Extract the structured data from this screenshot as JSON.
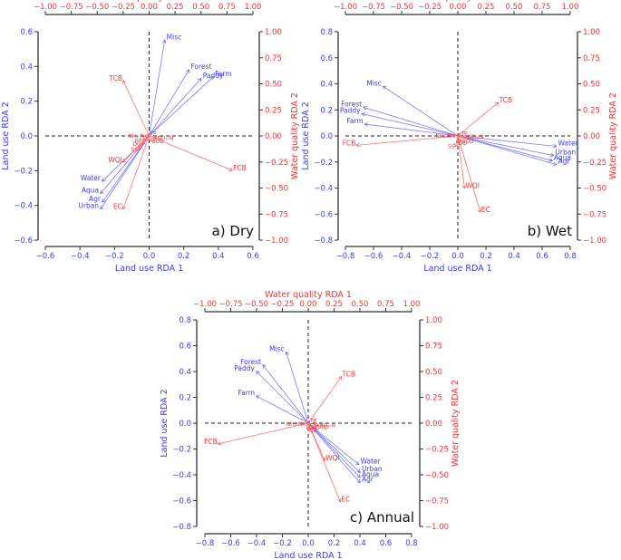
{
  "colors": {
    "land_use": "#3a3aff",
    "water_quality": "#ff3030",
    "axis": "#333333"
  },
  "chart_data": [
    {
      "type": "scatter",
      "panel_label": "a) Dry",
      "xlabel": "Land use RDA 1",
      "ylabel": "Land use RDA 2",
      "top_xlabel": "Water quality RDA 1",
      "right_ylabel": "Water quality RDA 2",
      "xlim": [
        -0.6,
        0.6
      ],
      "ylim": [
        -0.6,
        0.6
      ],
      "xticks": [
        "−0.6",
        "−0.4",
        "−0.2",
        "0.0",
        "0.2",
        "0.4",
        "0.6"
      ],
      "yticks": [
        "0.6",
        "0.4",
        "0.2",
        "0.0",
        "−0.2",
        "−0.4",
        "−0.6"
      ],
      "top_ticks": [
        "−1.00",
        "−0.75",
        "−0.50",
        "−0.25",
        "0.00",
        "0.25",
        "0.50",
        "0.75",
        "1.00"
      ],
      "right_ticks": [
        "1.00",
        "0.75",
        "0.50",
        "0.25",
        "0.00",
        "−0.25",
        "−0.50",
        "−0.75",
        "−1.00"
      ],
      "land_use_vectors": [
        {
          "label": "Misc",
          "x": 0.09,
          "y": 0.55
        },
        {
          "label": "Forest",
          "x": 0.23,
          "y": 0.38
        },
        {
          "label": "Paddy",
          "x": 0.3,
          "y": 0.33
        },
        {
          "label": "Farm",
          "x": 0.37,
          "y": 0.34
        },
        {
          "label": "Water",
          "x": -0.27,
          "y": -0.26
        },
        {
          "label": "Aqua",
          "x": -0.28,
          "y": -0.33
        },
        {
          "label": "Agr",
          "x": -0.27,
          "y": -0.38
        },
        {
          "label": "Urban",
          "x": -0.28,
          "y": -0.42
        }
      ],
      "water_quality_vectors": [
        {
          "label": "TCB",
          "x": -0.25,
          "y": 0.53
        },
        {
          "label": "FCB",
          "x": 0.8,
          "y": -0.33
        },
        {
          "label": "EC",
          "x": -0.25,
          "y": -0.7
        },
        {
          "label": "WQI",
          "x": -0.25,
          "y": -0.25
        },
        {
          "label": "SS",
          "x": -0.1,
          "y": -0.13
        },
        {
          "label": "DO",
          "x": -0.07,
          "y": -0.08
        },
        {
          "label": "pH",
          "x": -0.06,
          "y": -0.04
        },
        {
          "label": "NH₃-N",
          "x": -0.04,
          "y": 0.0
        },
        {
          "label": "TP",
          "x": 0.0,
          "y": 0.02
        },
        {
          "label": "NO₃-N",
          "x": 0.07,
          "y": -0.02
        },
        {
          "label": "BOD",
          "x": 0.02,
          "y": -0.05
        }
      ]
    },
    {
      "type": "scatter",
      "panel_label": "b) Wet",
      "xlabel": "Land use RDA 1",
      "ylabel": "Land use RDA 2",
      "top_xlabel": "Water quality RDA 1",
      "right_ylabel": "Water quality RDA 2",
      "xlim": [
        -0.8,
        0.8
      ],
      "ylim": [
        -0.8,
        0.8
      ],
      "xticks": [
        "−0.8",
        "−0.6",
        "−0.4",
        "−0.2",
        "0.0",
        "0.2",
        "0.4",
        "0.6",
        "0.8"
      ],
      "yticks": [
        "0.8",
        "0.6",
        "0.4",
        "0.2",
        "0.0",
        "−0.2",
        "−0.4",
        "−0.6",
        "−0.8"
      ],
      "top_ticks": [
        "−1.00",
        "−0.75",
        "−0.50",
        "−0.25",
        "0.00",
        "0.25",
        "0.50",
        "0.75",
        "1.00"
      ],
      "right_ticks": [
        "1.00",
        "0.75",
        "0.50",
        "0.25",
        "0.00",
        "−0.25",
        "−0.50",
        "−0.75",
        "−1.00"
      ],
      "land_use_vectors": [
        {
          "label": "Misc",
          "x": -0.53,
          "y": 0.38
        },
        {
          "label": "Forest",
          "x": -0.67,
          "y": 0.22
        },
        {
          "label": "Paddy",
          "x": -0.68,
          "y": 0.17
        },
        {
          "label": "Farm",
          "x": -0.66,
          "y": 0.09
        },
        {
          "label": "Water",
          "x": 0.7,
          "y": -0.08
        },
        {
          "label": "Urban",
          "x": 0.68,
          "y": -0.15
        },
        {
          "label": "Aqua",
          "x": 0.67,
          "y": -0.19
        },
        {
          "label": "Agr",
          "x": 0.7,
          "y": -0.22
        }
      ],
      "water_quality_vectors": [
        {
          "label": "TCB",
          "x": 0.36,
          "y": 0.32
        },
        {
          "label": "FCB",
          "x": -0.9,
          "y": -0.09
        },
        {
          "label": "EC",
          "x": 0.2,
          "y": -0.73
        },
        {
          "label": "WQI",
          "x": 0.06,
          "y": -0.5
        },
        {
          "label": "SS",
          "x": -0.02,
          "y": -0.1
        },
        {
          "label": "DO",
          "x": 0.0,
          "y": -0.07
        },
        {
          "label": "NH₃-N",
          "x": -0.05,
          "y": 0.0
        },
        {
          "label": "TP",
          "x": 0.02,
          "y": 0.02
        },
        {
          "label": "NO₃-N",
          "x": 0.08,
          "y": -0.01
        },
        {
          "label": "BOD",
          "x": 0.03,
          "y": -0.05
        }
      ]
    },
    {
      "type": "scatter",
      "panel_label": "c) Annual",
      "xlabel": "Land use RDA 1",
      "ylabel": "Land use RDA 2",
      "top_xlabel": "Water quality RDA 1",
      "right_ylabel": "Water quality RDA 2",
      "xlim": [
        -0.8,
        0.8
      ],
      "ylim": [
        -0.8,
        0.8
      ],
      "xticks": [
        "−0.8",
        "−0.6",
        "−0.4",
        "−0.2",
        "0.0",
        "0.2",
        "0.4",
        "0.6",
        "0.8"
      ],
      "yticks": [
        "0.8",
        "0.6",
        "0.4",
        "0.2",
        "0.0",
        "−0.2",
        "−0.4",
        "−0.6",
        "−0.8"
      ],
      "top_ticks": [
        "−1.00",
        "−0.75",
        "−0.50",
        "−0.25",
        "0.00",
        "0.25",
        "0.50",
        "0.75",
        "1.00"
      ],
      "right_ticks": [
        "1.00",
        "0.75",
        "0.50",
        "0.25",
        "0.00",
        "−0.25",
        "−0.50",
        "−0.75",
        "−1.00"
      ],
      "land_use_vectors": [
        {
          "label": "Misc",
          "x": -0.17,
          "y": 0.55
        },
        {
          "label": "Forest",
          "x": -0.35,
          "y": 0.45
        },
        {
          "label": "Paddy",
          "x": -0.4,
          "y": 0.4
        },
        {
          "label": "Farm",
          "x": -0.4,
          "y": 0.21
        },
        {
          "label": "Water",
          "x": 0.39,
          "y": -0.32
        },
        {
          "label": "Urban",
          "x": 0.4,
          "y": -0.38
        },
        {
          "label": "Aqua",
          "x": 0.4,
          "y": -0.42
        },
        {
          "label": "Agr",
          "x": 0.4,
          "y": -0.46
        }
      ],
      "water_quality_vectors": [
        {
          "label": "TCB",
          "x": 0.32,
          "y": 0.45
        },
        {
          "label": "FCB",
          "x": -0.87,
          "y": -0.2
        },
        {
          "label": "EC",
          "x": 0.31,
          "y": -0.76
        },
        {
          "label": "WQI",
          "x": 0.16,
          "y": -0.36
        },
        {
          "label": "NH₃-N",
          "x": -0.05,
          "y": -0.01
        },
        {
          "label": "TP",
          "x": 0.01,
          "y": 0.02
        },
        {
          "label": "SS",
          "x": 0.01,
          "y": -0.02
        },
        {
          "label": "NO₃-N",
          "x": 0.1,
          "y": -0.02
        },
        {
          "label": "BOD",
          "x": 0.07,
          "y": -0.04
        },
        {
          "label": "pH",
          "x": 0.0,
          "y": -0.05
        },
        {
          "label": "DO",
          "x": 0.0,
          "y": -0.07
        }
      ]
    }
  ]
}
